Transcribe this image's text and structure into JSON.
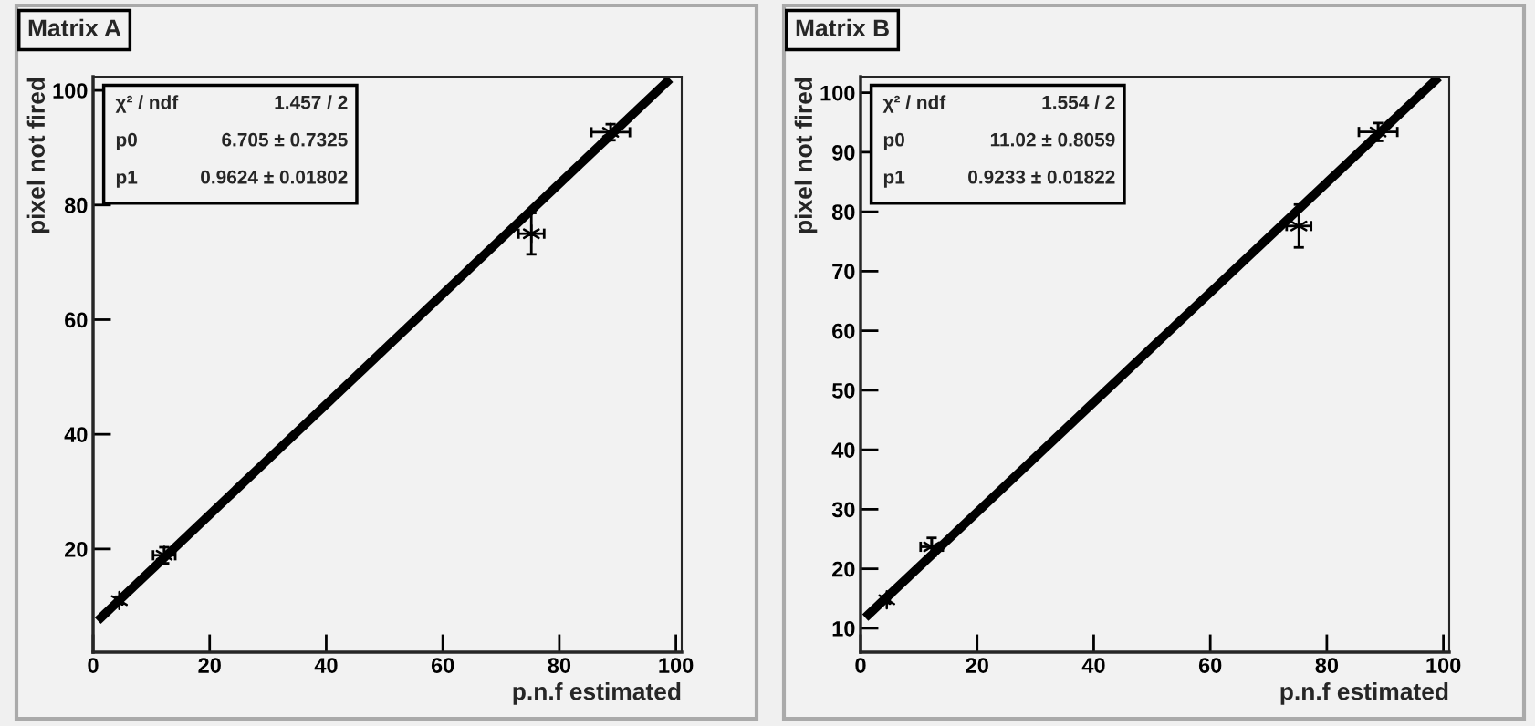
{
  "chart_data": [
    {
      "type": "scatter",
      "title": "Matrix A",
      "xlabel": "p.n.f estimated",
      "ylabel": "pixel not fired",
      "xlim": [
        0,
        101
      ],
      "ylim": [
        2,
        102.4
      ],
      "xticks": [
        0,
        20,
        40,
        60,
        80,
        100
      ],
      "yticks": [
        20,
        40,
        60,
        80,
        100
      ],
      "marker": "cross",
      "grid": false,
      "annotations": [
        "χ² / ndf",
        "1.457 / 2",
        "p0",
        "6.705 ± 0.7325",
        "p1",
        "0.9624 ± 0.01802"
      ],
      "series": [
        {
          "color": "#000000",
          "x": [
            4.5,
            12.2,
            75.2,
            88.8
          ],
          "values": [
            11.0,
            18.9,
            75.0,
            92.7
          ],
          "errors": [
            0.5,
            1.4,
            3.6,
            1.4
          ],
          "xerrors": [
            0.5,
            1.9,
            2.2,
            3.3
          ]
        },
        {
          "type": "line",
          "color": "#000000",
          "line_style": "solid",
          "marker": "none",
          "x": [
            0.8,
            99.0
          ],
          "values": [
            7.5,
            102.0
          ]
        }
      ]
    },
    {
      "type": "scatter",
      "title": "Matrix B",
      "xlabel": "p.n.f estimated",
      "ylabel": "pixel not fired",
      "xlim": [
        0,
        101
      ],
      "ylim": [
        6,
        102.7
      ],
      "xticks": [
        0,
        20,
        40,
        60,
        80,
        100
      ],
      "yticks": [
        10,
        20,
        30,
        40,
        50,
        60,
        70,
        80,
        90,
        100
      ],
      "marker": "cross",
      "grid": false,
      "annotations": [
        "χ² / ndf",
        "1.554 / 2",
        "p0",
        "11.02 ± 0.8059",
        "p1",
        "0.9233 ± 0.01822"
      ],
      "series": [
        {
          "color": "#000000",
          "x": [
            4.5,
            12.2,
            75.2,
            88.8
          ],
          "values": [
            14.8,
            23.7,
            77.6,
            93.4
          ],
          "errors": [
            0.5,
            1.5,
            3.6,
            1.5
          ],
          "xerrors": [
            0.5,
            1.9,
            2.1,
            3.3
          ]
        },
        {
          "type": "line",
          "color": "#000000",
          "line_style": "solid",
          "marker": "none",
          "x": [
            0.8,
            99.2
          ],
          "values": [
            11.8,
            102.6
          ]
        }
      ]
    }
  ]
}
